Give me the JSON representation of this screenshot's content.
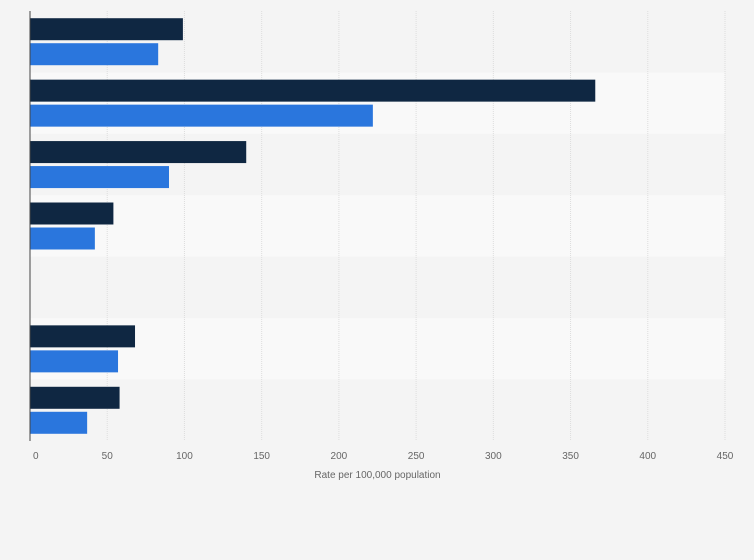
{
  "chart_data": {
    "type": "bar",
    "orientation": "horizontal",
    "title": "",
    "xlabel": "Rate per 100,000 population",
    "ylabel": "",
    "xlim": [
      0,
      450
    ],
    "xticks": [
      "0",
      "50",
      "100",
      "150",
      "200",
      "250",
      "300",
      "350",
      "400",
      "450"
    ],
    "grid": true,
    "legend": "none",
    "categories": [
      "",
      "",
      "",
      "",
      "",
      "",
      ""
    ],
    "series": [
      {
        "name": "",
        "color": "#0f2742",
        "values": [
          99,
          366,
          140,
          54,
          null,
          68,
          58
        ]
      },
      {
        "name": "",
        "color": "#2a76dd",
        "values": [
          83,
          222,
          90,
          42,
          null,
          57,
          37
        ]
      }
    ]
  }
}
